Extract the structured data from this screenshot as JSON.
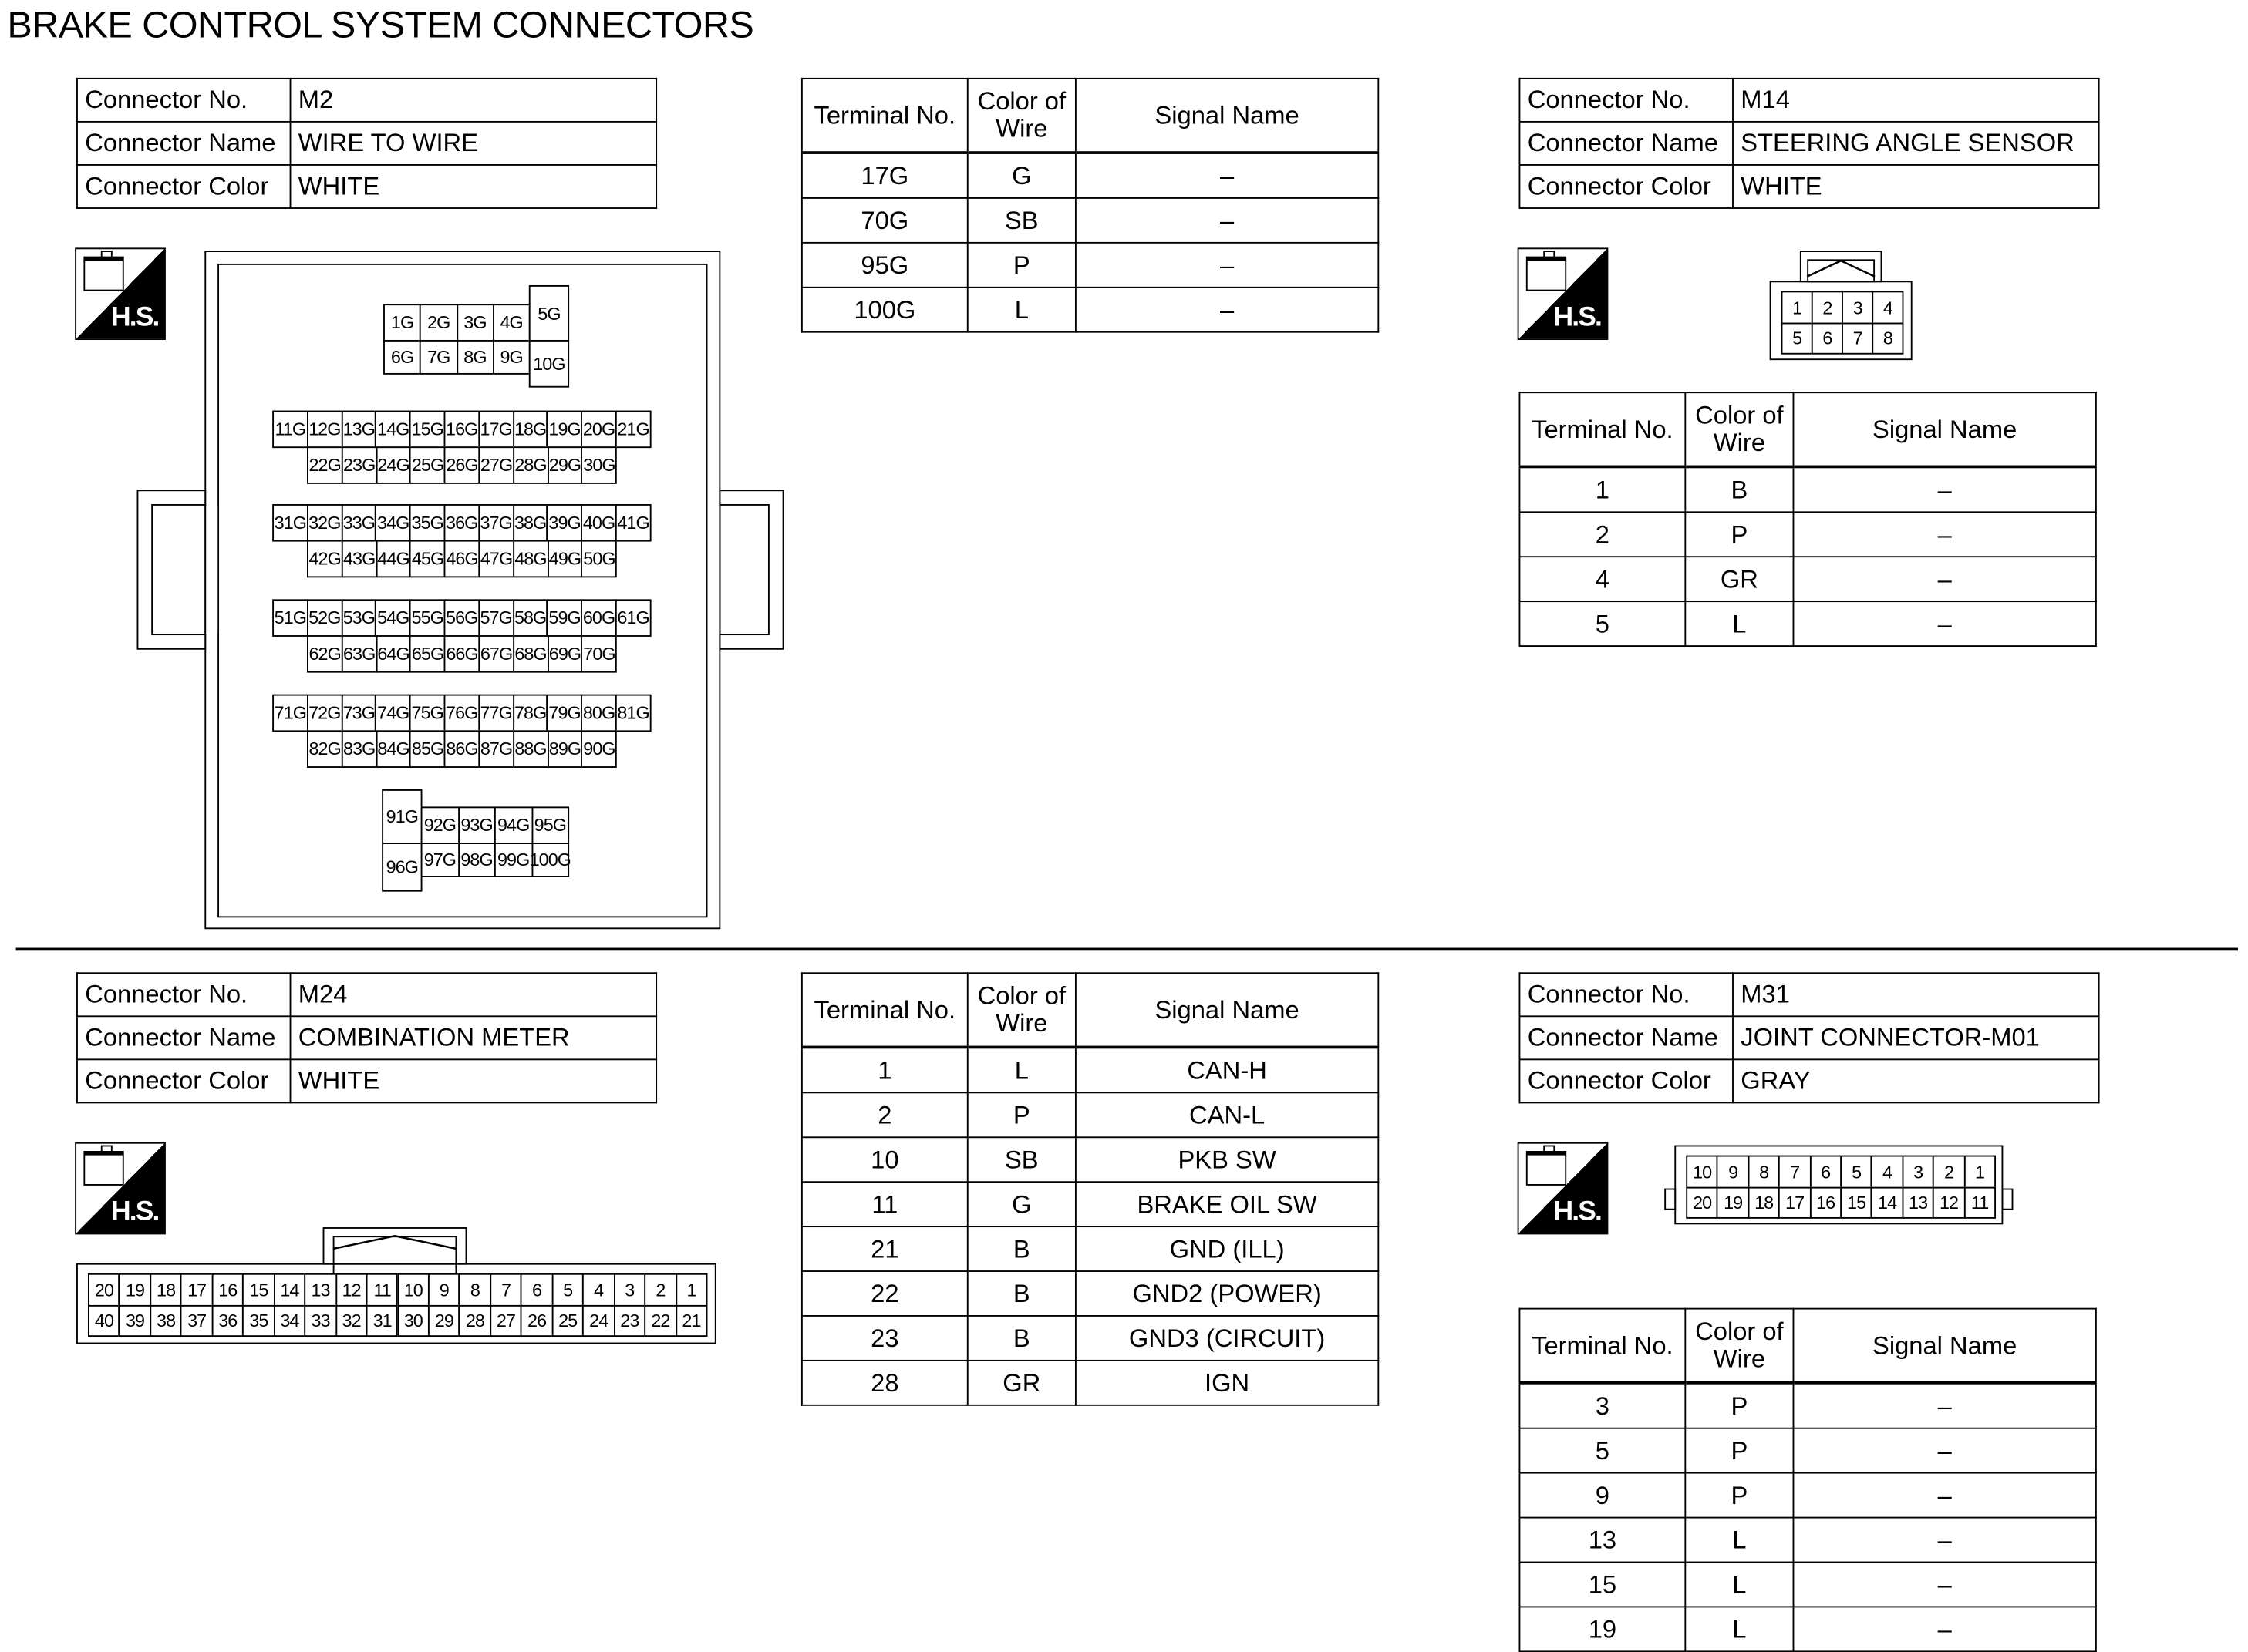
{
  "title": "BRAKE CONTROL SYSTEM CONNECTORS",
  "labels": {
    "connector_no": "Connector No.",
    "connector_name": "Connector Name",
    "connector_color": "Connector Color",
    "terminal_no": "Terminal No.",
    "color_of_wire": "Color of Wire",
    "signal_name": "Signal Name",
    "hs_icon_text": "H.S."
  },
  "connectors": [
    {
      "no": "M2",
      "name": "WIRE TO WIRE",
      "color": "WHITE",
      "terminals": [
        [
          "17G",
          "G",
          "–"
        ],
        [
          "70G",
          "SB",
          "–"
        ],
        [
          "95G",
          "P",
          "–"
        ],
        [
          "100G",
          "L",
          "–"
        ]
      ],
      "pins": [
        [
          "1G",
          "2G",
          "3G",
          "4G",
          "5G"
        ],
        [
          "6G",
          "7G",
          "8G",
          "9G",
          "10G"
        ],
        [
          "11G",
          "12G",
          "13G",
          "14G",
          "15G",
          "16G",
          "17G",
          "18G",
          "19G",
          "20G",
          "21G"
        ],
        [
          "22G",
          "23G",
          "24G",
          "25G",
          "26G",
          "27G",
          "28G",
          "29G",
          "30G"
        ],
        [
          "31G",
          "32G",
          "33G",
          "34G",
          "35G",
          "36G",
          "37G",
          "38G",
          "39G",
          "40G",
          "41G"
        ],
        [
          "42G",
          "43G",
          "44G",
          "45G",
          "46G",
          "47G",
          "48G",
          "49G",
          "50G"
        ],
        [
          "51G",
          "52G",
          "53G",
          "54G",
          "55G",
          "56G",
          "57G",
          "58G",
          "59G",
          "60G",
          "61G"
        ],
        [
          "62G",
          "63G",
          "64G",
          "65G",
          "66G",
          "67G",
          "68G",
          "69G",
          "70G"
        ],
        [
          "71G",
          "72G",
          "73G",
          "74G",
          "75G",
          "76G",
          "77G",
          "78G",
          "79G",
          "80G",
          "81G"
        ],
        [
          "82G",
          "83G",
          "84G",
          "85G",
          "86G",
          "87G",
          "88G",
          "89G",
          "90G"
        ],
        [
          "91G",
          "92G",
          "93G",
          "94G",
          "95G"
        ],
        [
          "96G",
          "97G",
          "98G",
          "99G",
          "100G"
        ]
      ]
    },
    {
      "no": "M14",
      "name": "STEERING ANGLE SENSOR",
      "color": "WHITE",
      "terminals": [
        [
          "1",
          "B",
          "–"
        ],
        [
          "2",
          "P",
          "–"
        ],
        [
          "4",
          "GR",
          "–"
        ],
        [
          "5",
          "L",
          "–"
        ]
      ],
      "pins": [
        [
          "1",
          "2",
          "3",
          "4"
        ],
        [
          "5",
          "6",
          "7",
          "8"
        ]
      ]
    },
    {
      "no": "M24",
      "name": "COMBINATION METER",
      "color": "WHITE",
      "terminals": [
        [
          "1",
          "L",
          "CAN-H"
        ],
        [
          "2",
          "P",
          "CAN-L"
        ],
        [
          "10",
          "SB",
          "PKB SW"
        ],
        [
          "11",
          "G",
          "BRAKE OIL SW"
        ],
        [
          "21",
          "B",
          "GND (ILL)"
        ],
        [
          "22",
          "B",
          "GND2 (POWER)"
        ],
        [
          "23",
          "B",
          "GND3 (CIRCUIT)"
        ],
        [
          "28",
          "GR",
          "IGN"
        ]
      ],
      "pins": [
        [
          "20",
          "19",
          "18",
          "17",
          "16",
          "15",
          "14",
          "13",
          "12",
          "11",
          "10",
          "9",
          "8",
          "7",
          "6",
          "5",
          "4",
          "3",
          "2",
          "1"
        ],
        [
          "40",
          "39",
          "38",
          "37",
          "36",
          "35",
          "34",
          "33",
          "32",
          "31",
          "30",
          "29",
          "28",
          "27",
          "26",
          "25",
          "24",
          "23",
          "22",
          "21"
        ]
      ]
    },
    {
      "no": "M31",
      "name": "JOINT CONNECTOR-M01",
      "color": "GRAY",
      "terminals": [
        [
          "3",
          "P",
          "–"
        ],
        [
          "5",
          "P",
          "–"
        ],
        [
          "9",
          "P",
          "–"
        ],
        [
          "13",
          "L",
          "–"
        ],
        [
          "15",
          "L",
          "–"
        ],
        [
          "19",
          "L",
          "–"
        ]
      ],
      "pins": [
        [
          "10",
          "9",
          "8",
          "7",
          "6",
          "5",
          "4",
          "3",
          "2",
          "1"
        ],
        [
          "20",
          "19",
          "18",
          "17",
          "16",
          "15",
          "14",
          "13",
          "12",
          "11"
        ]
      ]
    }
  ]
}
